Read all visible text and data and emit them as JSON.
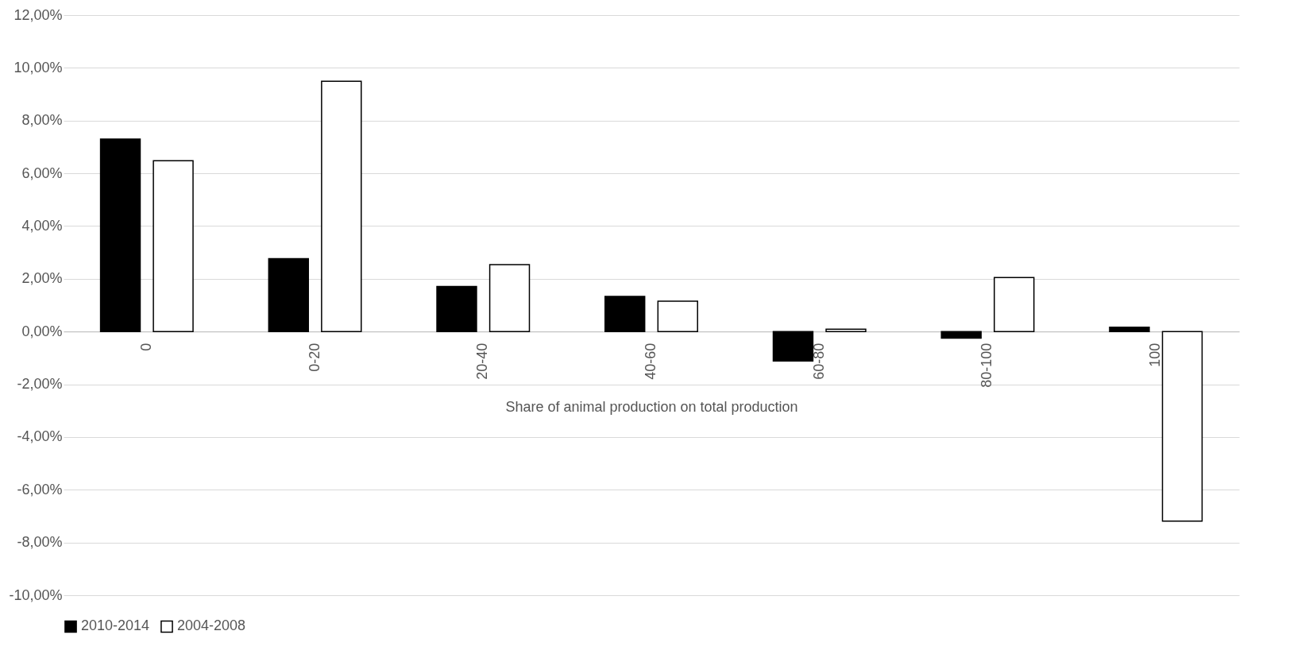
{
  "chart_data": {
    "type": "bar",
    "xlabel": "Share of animal production on total production",
    "categories": [
      "0",
      "0-20",
      "20-40",
      "40-60",
      "60-80",
      "80-100",
      "100"
    ],
    "series": [
      {
        "name": "2010-2014",
        "color": "#000000",
        "values": [
          7.3,
          2.76,
          1.71,
          1.33,
          -1.12,
          -0.25,
          0.16
        ]
      },
      {
        "name": "2004-2008",
        "color": "#ffffff",
        "values": [
          6.48,
          9.49,
          2.54,
          1.15,
          0.09,
          2.05,
          -7.19
        ]
      }
    ],
    "ylim": [
      -10,
      12
    ],
    "yticks": [
      {
        "value": -10,
        "label": "-10,00%"
      },
      {
        "value": -8,
        "label": "-8,00%"
      },
      {
        "value": -6,
        "label": "-6,00%"
      },
      {
        "value": -4,
        "label": "-4,00%"
      },
      {
        "value": -2,
        "label": "-2,00%"
      },
      {
        "value": 0,
        "label": "0,00%"
      },
      {
        "value": 2,
        "label": "2,00%"
      },
      {
        "value": 4,
        "label": "4,00%"
      },
      {
        "value": 6,
        "label": "6,00%"
      },
      {
        "value": 8,
        "label": "8,00%"
      },
      {
        "value": 10,
        "label": "10,00%"
      },
      {
        "value": 12,
        "label": "12,00%"
      }
    ],
    "grid": "y",
    "legend": "bottom"
  }
}
